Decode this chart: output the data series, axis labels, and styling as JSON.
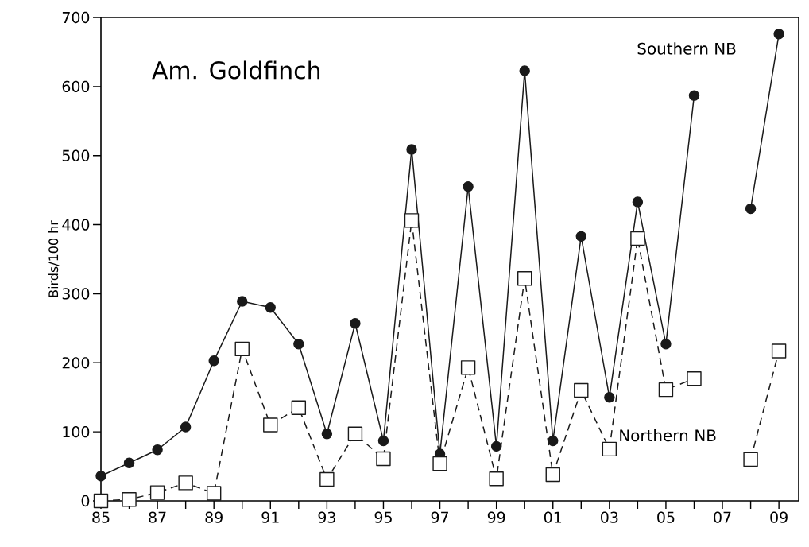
{
  "chart_data": {
    "type": "line",
    "title": "Am. Goldfinch",
    "ylabel": "Birds/100 hr",
    "x": [
      1985,
      1986,
      1987,
      1988,
      1989,
      1990,
      1991,
      1992,
      1993,
      1994,
      1995,
      1996,
      1997,
      1998,
      1999,
      2000,
      2001,
      2002,
      2003,
      2004,
      2005,
      2006,
      2007,
      2008,
      2009
    ],
    "series": [
      {
        "name": "Southern NB",
        "color": "#1a1a1a",
        "marker": "circle",
        "line_style": "solid",
        "values": [
          36,
          55,
          74,
          107,
          203,
          289,
          280,
          227,
          97,
          257,
          87,
          509,
          68,
          455,
          79,
          623,
          87,
          383,
          150,
          433,
          227,
          587,
          null,
          423,
          676
        ]
      },
      {
        "name": "Northern NB",
        "color": "#1a1a1a",
        "marker": "square",
        "line_style": "dashed",
        "values": [
          0,
          2,
          12,
          26,
          11,
          220,
          110,
          135,
          31,
          97,
          61,
          406,
          54,
          193,
          32,
          322,
          38,
          160,
          75,
          380,
          161,
          177,
          null,
          60,
          217
        ]
      }
    ],
    "xlim": [
      1985,
      2009.7
    ],
    "ylim": [
      0,
      700
    ],
    "xticks": [
      {
        "value": 1985,
        "label": "85"
      },
      {
        "value": 1986,
        "label": null
      },
      {
        "value": 1987,
        "label": "87"
      },
      {
        "value": 1988,
        "label": null
      },
      {
        "value": 1989,
        "label": "89"
      },
      {
        "value": 1990,
        "label": null
      },
      {
        "value": 1991,
        "label": "91"
      },
      {
        "value": 1992,
        "label": null
      },
      {
        "value": 1993,
        "label": "93"
      },
      {
        "value": 1994,
        "label": null
      },
      {
        "value": 1995,
        "label": "95"
      },
      {
        "value": 1996,
        "label": null
      },
      {
        "value": 1997,
        "label": "97"
      },
      {
        "value": 1998,
        "label": null
      },
      {
        "value": 1999,
        "label": "99"
      },
      {
        "value": 2000,
        "label": null
      },
      {
        "value": 2001,
        "label": "01"
      },
      {
        "value": 2002,
        "label": null
      },
      {
        "value": 2003,
        "label": "03"
      },
      {
        "value": 2004,
        "label": null
      },
      {
        "value": 2005,
        "label": "05"
      },
      {
        "value": 2006,
        "label": null
      },
      {
        "value": 2007,
        "label": "07"
      },
      {
        "value": 2008,
        "label": null
      },
      {
        "value": 2009,
        "label": "09"
      }
    ],
    "yticks": [
      0,
      100,
      200,
      300,
      400,
      500,
      600,
      700
    ]
  }
}
